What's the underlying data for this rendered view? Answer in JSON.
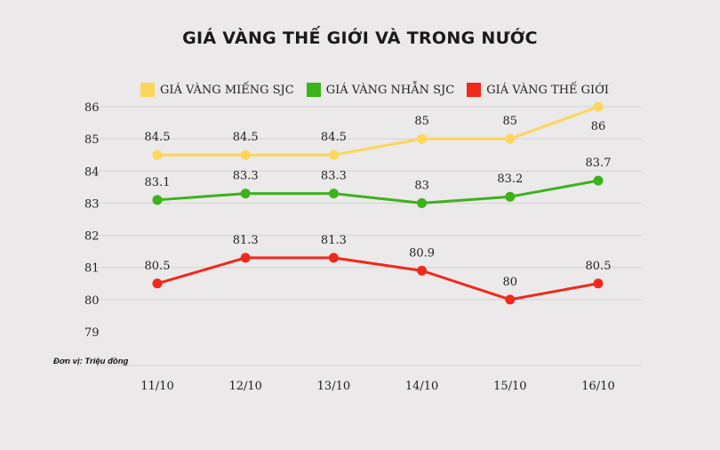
{
  "chart_data": {
    "type": "line",
    "title": "GIÁ VÀNG THẾ GIỚI VÀ TRONG NƯỚC",
    "unit_note": "Đơn vị: Triệu đồng",
    "categories": [
      "11/10",
      "12/10",
      "13/10",
      "14/10",
      "15/10",
      "16/10"
    ],
    "ylim": [
      79,
      86
    ],
    "yticks": [
      79,
      80,
      81,
      82,
      83,
      84,
      85,
      86
    ],
    "grid": true,
    "legend_position": "top",
    "series": [
      {
        "name": "GIÁ VÀNG MIẾNG SJC",
        "color": "#fbd65b",
        "values": [
          84.5,
          84.5,
          84.5,
          85,
          85,
          86
        ],
        "labels": [
          "84.5",
          "84.5",
          "84.5",
          "85",
          "85",
          "86"
        ],
        "label_position": [
          "above",
          "above",
          "above",
          "above",
          "above",
          "below"
        ]
      },
      {
        "name": "GIÁ VÀNG NHẪN SJC",
        "color": "#3cb21c",
        "values": [
          83.1,
          83.3,
          83.3,
          83,
          83.2,
          83.7
        ],
        "labels": [
          "83.1",
          "83.3",
          "83.3",
          "83",
          "83.2",
          "83.7"
        ],
        "label_position": [
          "above",
          "above",
          "above",
          "above",
          "above",
          "above"
        ]
      },
      {
        "name": "GIÁ VÀNG THẾ GIỚI",
        "color": "#ee2a1c",
        "values": [
          80.5,
          81.3,
          81.3,
          80.9,
          80,
          80.5
        ],
        "labels": [
          "80.5",
          "81.3",
          "81.3",
          "80.9",
          "80",
          "80.5"
        ],
        "label_position": [
          "above",
          "above",
          "above",
          "above",
          "above",
          "above"
        ]
      }
    ]
  }
}
